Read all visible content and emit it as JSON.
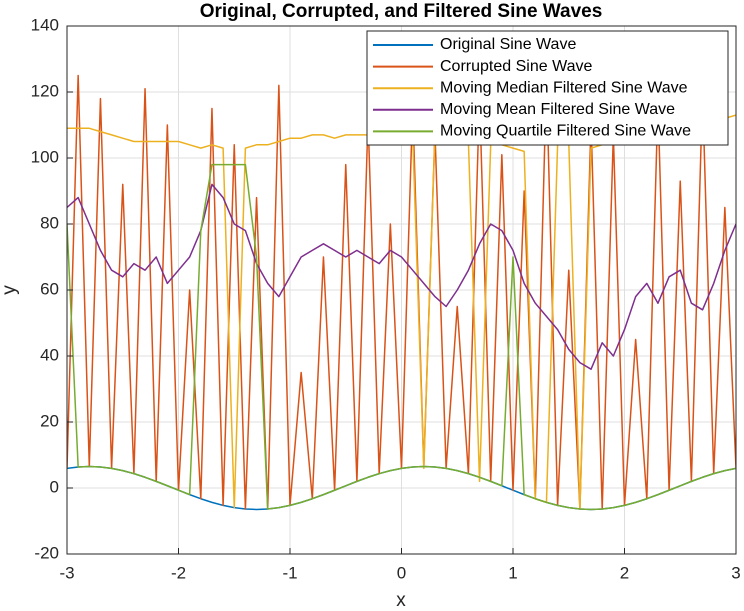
{
  "chart_data": {
    "type": "line",
    "title": "Original, Corrupted, and Filtered Sine Waves",
    "xlabel": "x",
    "ylabel": "y",
    "xlim": [
      -3,
      3
    ],
    "ylim": [
      -20,
      140
    ],
    "xticks": [
      -3,
      -2,
      -1,
      0,
      1,
      2,
      3
    ],
    "yticks": [
      -20,
      0,
      20,
      40,
      60,
      80,
      100,
      120,
      140
    ],
    "grid": true,
    "legend": "northeast",
    "x": [
      -3.0,
      -2.9,
      -2.8,
      -2.7,
      -2.6,
      -2.5,
      -2.4,
      -2.3,
      -2.2,
      -2.1,
      -2.0,
      -1.9,
      -1.8,
      -1.7,
      -1.6,
      -1.5,
      -1.4,
      -1.3,
      -1.2,
      -1.1,
      -1.0,
      -0.9,
      -0.8,
      -0.7,
      -0.6,
      -0.5,
      -0.4,
      -0.3,
      -0.2,
      -0.1,
      0.0,
      0.1,
      0.2,
      0.3,
      0.4,
      0.5,
      0.6,
      0.7,
      0.8,
      0.9,
      1.0,
      1.1,
      1.2,
      1.3,
      1.4,
      1.5,
      1.6,
      1.7,
      1.8,
      1.9,
      2.0,
      2.1,
      2.2,
      2.3,
      2.4,
      2.5,
      2.6,
      2.7,
      2.8,
      2.9,
      3.0
    ],
    "series": [
      {
        "name": "Original Sine Wave",
        "color": "#0072BD",
        "values": [
          5.94,
          6.36,
          6.5,
          6.36,
          5.94,
          5.26,
          4.35,
          3.25,
          2.01,
          0.68,
          -0.68,
          -2.01,
          -3.25,
          -4.35,
          -5.26,
          -5.94,
          -6.36,
          -6.5,
          -6.36,
          -5.94,
          -5.26,
          -4.35,
          -3.25,
          -2.01,
          -0.68,
          0.68,
          2.01,
          3.25,
          4.35,
          5.26,
          5.94,
          6.36,
          6.5,
          6.36,
          5.94,
          5.26,
          4.35,
          3.25,
          2.01,
          0.68,
          -0.68,
          -2.01,
          -3.25,
          -4.35,
          -5.26,
          -5.94,
          -6.36,
          -6.5,
          -6.36,
          -5.94,
          -5.26,
          -4.35,
          -3.25,
          -2.01,
          -0.68,
          0.68,
          2.01,
          3.25,
          4.35,
          5.26,
          5.94
        ]
      },
      {
        "name": "Corrupted Sine Wave",
        "color": "#D95319",
        "values": [
          5.94,
          125,
          6.5,
          118,
          5.94,
          92,
          4.35,
          121,
          2.01,
          110,
          -0.68,
          60,
          -3.25,
          115,
          -5.26,
          104,
          -6.36,
          88,
          -6.36,
          122,
          -5.26,
          35,
          -3.25,
          70,
          -0.68,
          98,
          2.01,
          112,
          4.35,
          80,
          5.94,
          116,
          6.5,
          108,
          5.94,
          55,
          4.35,
          119,
          2.01,
          101,
          -0.68,
          90,
          -3.25,
          124,
          -5.26,
          66,
          -6.36,
          111,
          -6.36,
          107,
          -5.26,
          45,
          -3.25,
          117,
          -0.68,
          93,
          2.01,
          120,
          4.35,
          85,
          5.94
        ]
      },
      {
        "name": "Moving Median Filtered Sine Wave",
        "color": "#EDB120",
        "values": [
          109,
          109,
          109,
          108,
          107,
          106,
          105,
          105,
          105,
          105,
          105,
          104,
          103,
          104,
          103,
          -5.94,
          103,
          104,
          104,
          105,
          106,
          106,
          107,
          107,
          106,
          107,
          107,
          107,
          106,
          107,
          108,
          107,
          5.94,
          107,
          106,
          106,
          105,
          2.01,
          104,
          104,
          103,
          102,
          -3.25,
          -4.35,
          104,
          105,
          -6.36,
          103,
          104,
          104,
          105,
          106,
          106,
          107,
          107,
          108,
          107,
          108,
          110,
          112,
          113
        ]
      },
      {
        "name": "Moving Mean Filtered Sine Wave",
        "color": "#7E2F8E",
        "values": [
          85,
          88,
          80,
          72,
          66,
          64,
          68,
          66,
          70,
          62,
          66,
          70,
          78,
          92,
          88,
          80,
          78,
          68,
          62,
          58,
          64,
          70,
          72,
          74,
          72,
          70,
          72,
          70,
          68,
          72,
          70,
          66,
          62,
          58,
          55,
          60,
          66,
          74,
          80,
          78,
          72,
          62,
          56,
          52,
          48,
          42,
          38,
          36,
          44,
          40,
          48,
          58,
          62,
          56,
          64,
          66,
          56,
          54,
          62,
          72,
          80
        ]
      },
      {
        "name": "Moving Quartile Filtered Sine Wave",
        "color": "#77AC30",
        "values": [
          80,
          6.36,
          6.5,
          6.36,
          5.94,
          5.26,
          4.35,
          3.25,
          2.01,
          0.68,
          -0.68,
          -2.01,
          78,
          98,
          98,
          98,
          98,
          70,
          -6.36,
          -5.94,
          -5.26,
          -4.35,
          -3.25,
          -2.01,
          -0.68,
          0.68,
          2.01,
          3.25,
          4.35,
          5.26,
          5.94,
          6.36,
          6.5,
          6.36,
          5.94,
          5.26,
          4.35,
          3.25,
          2.01,
          0.68,
          70,
          -2.01,
          -3.25,
          -4.35,
          -5.26,
          -5.94,
          -6.36,
          -6.5,
          -6.36,
          -5.94,
          -5.26,
          -4.35,
          -3.25,
          -2.01,
          -0.68,
          0.68,
          2.01,
          3.25,
          4.35,
          5.26,
          5.94
        ]
      }
    ]
  }
}
